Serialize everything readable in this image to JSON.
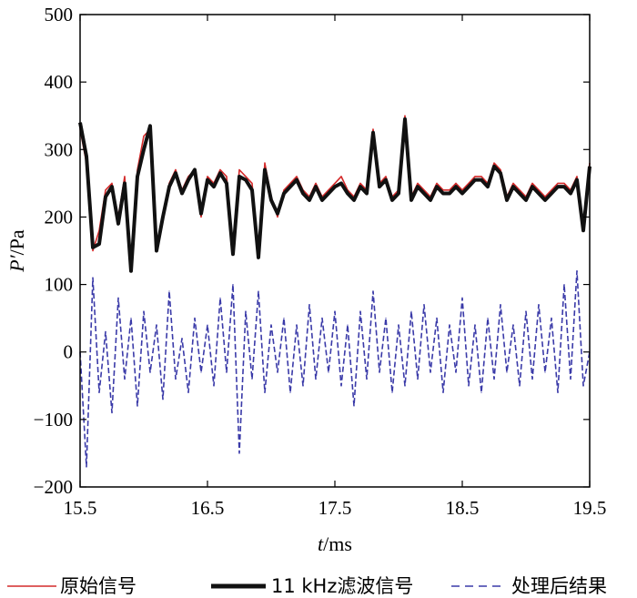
{
  "chart_data": {
    "type": "line",
    "xlabel_italic": "t",
    "xlabel_unit": "/ms",
    "ylabel_italic": "P′",
    "ylabel_unit": "/Pa",
    "xlim": [
      15.5,
      19.5
    ],
    "ylim": [
      -200,
      500
    ],
    "x_ticks": [
      "15.5",
      "16.5",
      "17.5",
      "18.5",
      "19.5"
    ],
    "x_tick_values": [
      15.5,
      16.5,
      17.5,
      18.5,
      19.5
    ],
    "y_ticks": [
      "−200",
      "−100",
      "0",
      "100",
      "200",
      "300",
      "400",
      "500"
    ],
    "y_tick_values": [
      -200,
      -100,
      0,
      100,
      200,
      300,
      400,
      500
    ],
    "grid": false,
    "legend_position": "bottom",
    "series": [
      {
        "name": "原始信号",
        "color": "#d42a2a",
        "style": "thin-solid",
        "x": [
          15.5,
          15.55,
          15.6,
          15.65,
          15.7,
          15.75,
          15.8,
          15.85,
          15.9,
          15.95,
          16.0,
          16.05,
          16.1,
          16.15,
          16.2,
          16.25,
          16.3,
          16.35,
          16.4,
          16.45,
          16.5,
          16.55,
          16.6,
          16.65,
          16.7,
          16.75,
          16.8,
          16.85,
          16.9,
          16.95,
          17.0,
          17.05,
          17.1,
          17.15,
          17.2,
          17.25,
          17.3,
          17.35,
          17.4,
          17.45,
          17.5,
          17.55,
          17.6,
          17.65,
          17.7,
          17.75,
          17.8,
          17.85,
          17.9,
          17.95,
          18.0,
          18.05,
          18.1,
          18.15,
          18.2,
          18.25,
          18.3,
          18.35,
          18.4,
          18.45,
          18.5,
          18.55,
          18.6,
          18.65,
          18.7,
          18.75,
          18.8,
          18.85,
          18.9,
          18.95,
          19.0,
          19.05,
          19.1,
          19.15,
          19.2,
          19.25,
          19.3,
          19.35,
          19.4,
          19.45,
          19.5
        ],
        "values": [
          330,
          280,
          150,
          180,
          240,
          250,
          200,
          260,
          120,
          270,
          320,
          330,
          150,
          200,
          250,
          270,
          240,
          260,
          270,
          200,
          260,
          250,
          270,
          260,
          150,
          270,
          260,
          250,
          140,
          280,
          230,
          200,
          240,
          250,
          260,
          240,
          230,
          250,
          230,
          240,
          250,
          260,
          240,
          230,
          250,
          240,
          330,
          250,
          260,
          230,
          240,
          350,
          230,
          250,
          240,
          230,
          250,
          240,
          240,
          250,
          240,
          250,
          260,
          260,
          250,
          280,
          270,
          230,
          250,
          240,
          230,
          250,
          240,
          230,
          240,
          250,
          250,
          240,
          260,
          180,
          280
        ]
      },
      {
        "name": "11 kHz滤波信号",
        "color": "#111111",
        "style": "thick-solid",
        "x": [
          15.5,
          15.55,
          15.6,
          15.65,
          15.7,
          15.75,
          15.8,
          15.85,
          15.9,
          15.95,
          16.0,
          16.05,
          16.1,
          16.15,
          16.2,
          16.25,
          16.3,
          16.35,
          16.4,
          16.45,
          16.5,
          16.55,
          16.6,
          16.65,
          16.7,
          16.75,
          16.8,
          16.85,
          16.9,
          16.95,
          17.0,
          17.05,
          17.1,
          17.15,
          17.2,
          17.25,
          17.3,
          17.35,
          17.4,
          17.45,
          17.5,
          17.55,
          17.6,
          17.65,
          17.7,
          17.75,
          17.8,
          17.85,
          17.9,
          17.95,
          18.0,
          18.05,
          18.1,
          18.15,
          18.2,
          18.25,
          18.3,
          18.35,
          18.4,
          18.45,
          18.5,
          18.55,
          18.6,
          18.65,
          18.7,
          18.75,
          18.8,
          18.85,
          18.9,
          18.95,
          19.0,
          19.05,
          19.1,
          19.15,
          19.2,
          19.25,
          19.3,
          19.35,
          19.4,
          19.45,
          19.5
        ],
        "values": [
          340,
          290,
          155,
          160,
          230,
          245,
          190,
          250,
          120,
          260,
          300,
          335,
          150,
          200,
          245,
          265,
          235,
          255,
          270,
          205,
          255,
          245,
          265,
          250,
          145,
          260,
          255,
          240,
          140,
          270,
          225,
          205,
          235,
          245,
          255,
          235,
          225,
          245,
          225,
          235,
          245,
          250,
          235,
          225,
          245,
          235,
          325,
          245,
          255,
          225,
          235,
          345,
          225,
          245,
          235,
          225,
          245,
          235,
          235,
          245,
          235,
          245,
          255,
          255,
          245,
          275,
          265,
          225,
          245,
          235,
          225,
          245,
          235,
          225,
          235,
          245,
          245,
          235,
          255,
          180,
          275
        ]
      },
      {
        "name": "处理后结果",
        "color": "#3a3aa8",
        "style": "dashed",
        "x": [
          15.5,
          15.55,
          15.6,
          15.65,
          15.7,
          15.75,
          15.8,
          15.85,
          15.9,
          15.95,
          16.0,
          16.05,
          16.1,
          16.15,
          16.2,
          16.25,
          16.3,
          16.35,
          16.4,
          16.45,
          16.5,
          16.55,
          16.6,
          16.65,
          16.7,
          16.75,
          16.8,
          16.85,
          16.9,
          16.95,
          17.0,
          17.05,
          17.1,
          17.15,
          17.2,
          17.25,
          17.3,
          17.35,
          17.4,
          17.45,
          17.5,
          17.55,
          17.6,
          17.65,
          17.7,
          17.75,
          17.8,
          17.85,
          17.9,
          17.95,
          18.0,
          18.05,
          18.1,
          18.15,
          18.2,
          18.25,
          18.3,
          18.35,
          18.4,
          18.45,
          18.5,
          18.55,
          18.6,
          18.65,
          18.7,
          18.75,
          18.8,
          18.85,
          18.9,
          18.95,
          19.0,
          19.05,
          19.1,
          19.15,
          19.2,
          19.25,
          19.3,
          19.35,
          19.4,
          19.45,
          19.5
        ],
        "values": [
          0,
          -170,
          110,
          -60,
          30,
          -90,
          80,
          -40,
          50,
          -80,
          60,
          -30,
          40,
          -70,
          90,
          -40,
          20,
          -60,
          50,
          -30,
          40,
          -50,
          80,
          -30,
          100,
          -150,
          60,
          -40,
          90,
          -60,
          40,
          -30,
          50,
          -60,
          40,
          -50,
          70,
          -40,
          50,
          -30,
          60,
          -50,
          40,
          -80,
          60,
          -40,
          90,
          -30,
          50,
          -60,
          40,
          -50,
          60,
          -40,
          70,
          -30,
          50,
          -60,
          40,
          -30,
          80,
          -50,
          40,
          -60,
          50,
          -40,
          70,
          -30,
          40,
          -50,
          60,
          -40,
          70,
          -30,
          50,
          -60,
          100,
          -40,
          120,
          -50,
          0
        ]
      }
    ]
  }
}
